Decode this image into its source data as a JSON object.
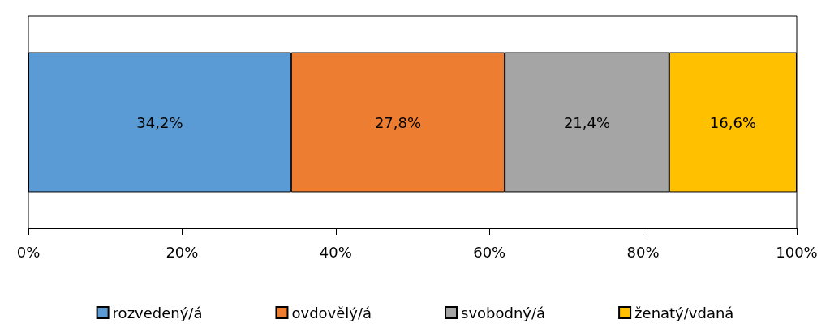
{
  "chart_data": {
    "type": "bar",
    "orientation": "horizontal",
    "stacked": true,
    "categories": [
      null
    ],
    "series": [
      {
        "name": "rozvedený/á",
        "color": "#5b9bd5",
        "values": [
          34.2
        ],
        "value_labels": [
          "34,2%"
        ]
      },
      {
        "name": "ovdovělý/á",
        "color": "#ed7d31",
        "values": [
          27.8
        ],
        "value_labels": [
          "27,8%"
        ]
      },
      {
        "name": "svobodný/á",
        "color": "#a5a5a5",
        "values": [
          21.4
        ],
        "value_labels": [
          "21,4%"
        ]
      },
      {
        "name": "ženatý/vdaná",
        "color": "#ffc000",
        "values": [
          16.6
        ],
        "value_labels": [
          "16,6%"
        ]
      }
    ],
    "xlim": [
      0,
      100
    ],
    "xticks": [
      {
        "value": 0,
        "label": "0%"
      },
      {
        "value": 20,
        "label": "20%"
      },
      {
        "value": 40,
        "label": "40%"
      },
      {
        "value": 60,
        "label": "60%"
      },
      {
        "value": 80,
        "label": "80%"
      },
      {
        "value": 100,
        "label": "100%"
      }
    ],
    "grid": false,
    "legend": "bottom"
  }
}
